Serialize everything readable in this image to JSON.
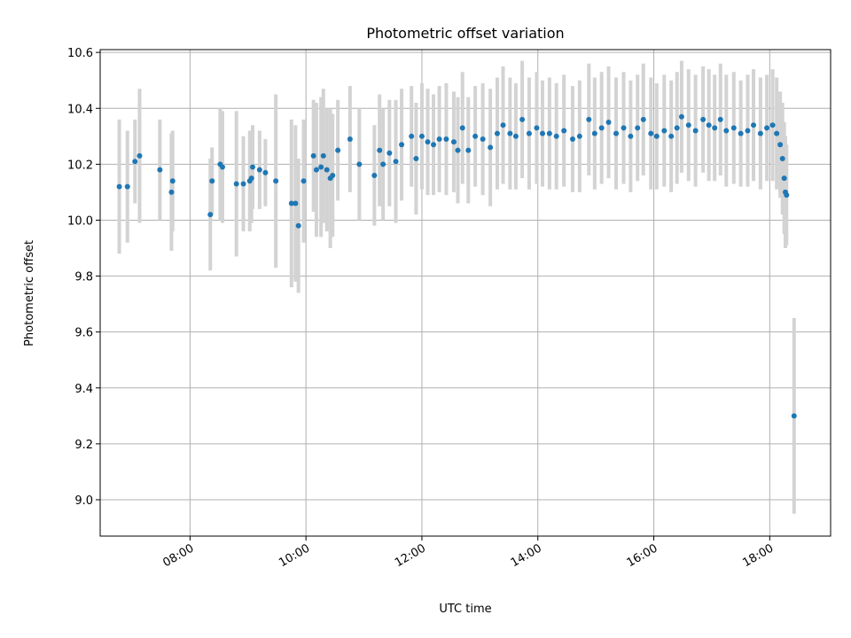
{
  "chart_data": {
    "type": "scatter",
    "title": "Photometric offset variation",
    "xlabel": "UTC time",
    "ylabel": "Photometric offset",
    "x_unit": "hours UTC",
    "xlim": [
      6.45,
      19.05
    ],
    "ylim": [
      8.87,
      10.61
    ],
    "x_ticks": [
      8,
      10,
      12,
      14,
      16,
      18
    ],
    "x_tick_labels": [
      "08:00",
      "10:00",
      "12:00",
      "14:00",
      "16:00",
      "18:00"
    ],
    "y_ticks": [
      9.0,
      9.2,
      9.4,
      9.6,
      9.8,
      10.0,
      10.2,
      10.4,
      10.6
    ],
    "y_tick_labels": [
      "9.0",
      "9.2",
      "9.4",
      "9.6",
      "9.8",
      "10.0",
      "10.2",
      "10.4",
      "10.6"
    ],
    "grid": true,
    "colors": {
      "points": "#1f77b4",
      "errorbars": "#d3d3d3",
      "grid": "#b0b0b0",
      "axes": "#000000"
    },
    "series": [
      {
        "marker": "point-with-errorbar",
        "points": [
          [
            6.78,
            10.12,
            0.24
          ],
          [
            6.92,
            10.12,
            0.2
          ],
          [
            7.05,
            10.21,
            0.15
          ],
          [
            7.13,
            10.23,
            0.24
          ],
          [
            7.48,
            10.18,
            0.18
          ],
          [
            7.68,
            10.1,
            0.21
          ],
          [
            7.7,
            10.14,
            0.18
          ],
          [
            8.35,
            10.02,
            0.2
          ],
          [
            8.38,
            10.14,
            0.12
          ],
          [
            8.52,
            10.2,
            0.2
          ],
          [
            8.56,
            10.19,
            0.2
          ],
          [
            8.8,
            10.13,
            0.26
          ],
          [
            8.92,
            10.13,
            0.17
          ],
          [
            9.03,
            10.14,
            0.18
          ],
          [
            9.06,
            10.15,
            0.16
          ],
          [
            9.08,
            10.19,
            0.15
          ],
          [
            9.2,
            10.18,
            0.14
          ],
          [
            9.3,
            10.17,
            0.12
          ],
          [
            9.48,
            10.14,
            0.31
          ],
          [
            9.75,
            10.06,
            0.3
          ],
          [
            9.82,
            10.06,
            0.28
          ],
          [
            9.87,
            9.98,
            0.24
          ],
          [
            9.96,
            10.14,
            0.22
          ],
          [
            10.13,
            10.23,
            0.2
          ],
          [
            10.18,
            10.18,
            0.24
          ],
          [
            10.26,
            10.19,
            0.25
          ],
          [
            10.3,
            10.23,
            0.24
          ],
          [
            10.36,
            10.18,
            0.22
          ],
          [
            10.42,
            10.15,
            0.25
          ],
          [
            10.46,
            10.16,
            0.22
          ],
          [
            10.55,
            10.25,
            0.18
          ],
          [
            10.76,
            10.29,
            0.19
          ],
          [
            10.92,
            10.2,
            0.2
          ],
          [
            11.18,
            10.16,
            0.18
          ],
          [
            11.27,
            10.25,
            0.2
          ],
          [
            11.33,
            10.2,
            0.2
          ],
          [
            11.44,
            10.24,
            0.19
          ],
          [
            11.55,
            10.21,
            0.22
          ],
          [
            11.65,
            10.27,
            0.2
          ],
          [
            11.82,
            10.3,
            0.18
          ],
          [
            11.9,
            10.22,
            0.2
          ],
          [
            12.0,
            10.3,
            0.19
          ],
          [
            12.1,
            10.28,
            0.19
          ],
          [
            12.2,
            10.27,
            0.18
          ],
          [
            12.3,
            10.29,
            0.19
          ],
          [
            12.42,
            10.29,
            0.2
          ],
          [
            12.55,
            10.28,
            0.18
          ],
          [
            12.62,
            10.25,
            0.19
          ],
          [
            12.7,
            10.33,
            0.2
          ],
          [
            12.8,
            10.25,
            0.19
          ],
          [
            12.92,
            10.3,
            0.18
          ],
          [
            13.05,
            10.29,
            0.2
          ],
          [
            13.18,
            10.26,
            0.21
          ],
          [
            13.3,
            10.31,
            0.2
          ],
          [
            13.4,
            10.34,
            0.21
          ],
          [
            13.52,
            10.31,
            0.2
          ],
          [
            13.62,
            10.3,
            0.19
          ],
          [
            13.73,
            10.36,
            0.21
          ],
          [
            13.85,
            10.31,
            0.2
          ],
          [
            13.98,
            10.33,
            0.2
          ],
          [
            14.08,
            10.31,
            0.19
          ],
          [
            14.2,
            10.31,
            0.2
          ],
          [
            14.32,
            10.3,
            0.19
          ],
          [
            14.45,
            10.32,
            0.2
          ],
          [
            14.6,
            10.29,
            0.19
          ],
          [
            14.72,
            10.3,
            0.2
          ],
          [
            14.88,
            10.36,
            0.2
          ],
          [
            14.98,
            10.31,
            0.2
          ],
          [
            15.1,
            10.33,
            0.2
          ],
          [
            15.22,
            10.35,
            0.2
          ],
          [
            15.35,
            10.31,
            0.2
          ],
          [
            15.48,
            10.33,
            0.2
          ],
          [
            15.6,
            10.3,
            0.2
          ],
          [
            15.72,
            10.33,
            0.19
          ],
          [
            15.82,
            10.36,
            0.2
          ],
          [
            15.95,
            10.31,
            0.2
          ],
          [
            16.05,
            10.3,
            0.19
          ],
          [
            16.18,
            10.32,
            0.2
          ],
          [
            16.3,
            10.3,
            0.2
          ],
          [
            16.4,
            10.33,
            0.2
          ],
          [
            16.48,
            10.37,
            0.2
          ],
          [
            16.6,
            10.34,
            0.2
          ],
          [
            16.72,
            10.32,
            0.2
          ],
          [
            16.85,
            10.36,
            0.19
          ],
          [
            16.95,
            10.34,
            0.2
          ],
          [
            17.05,
            10.33,
            0.19
          ],
          [
            17.15,
            10.36,
            0.2
          ],
          [
            17.25,
            10.32,
            0.2
          ],
          [
            17.38,
            10.33,
            0.2
          ],
          [
            17.5,
            10.31,
            0.19
          ],
          [
            17.62,
            10.32,
            0.2
          ],
          [
            17.72,
            10.34,
            0.2
          ],
          [
            17.84,
            10.31,
            0.2
          ],
          [
            17.95,
            10.33,
            0.19
          ],
          [
            18.05,
            10.34,
            0.2
          ],
          [
            18.12,
            10.31,
            0.2
          ],
          [
            18.18,
            10.27,
            0.19
          ],
          [
            18.22,
            10.22,
            0.2
          ],
          [
            18.25,
            10.15,
            0.2
          ],
          [
            18.27,
            10.1,
            0.2
          ],
          [
            18.29,
            10.09,
            0.18
          ],
          [
            18.42,
            9.3,
            0.35
          ]
        ]
      }
    ]
  }
}
